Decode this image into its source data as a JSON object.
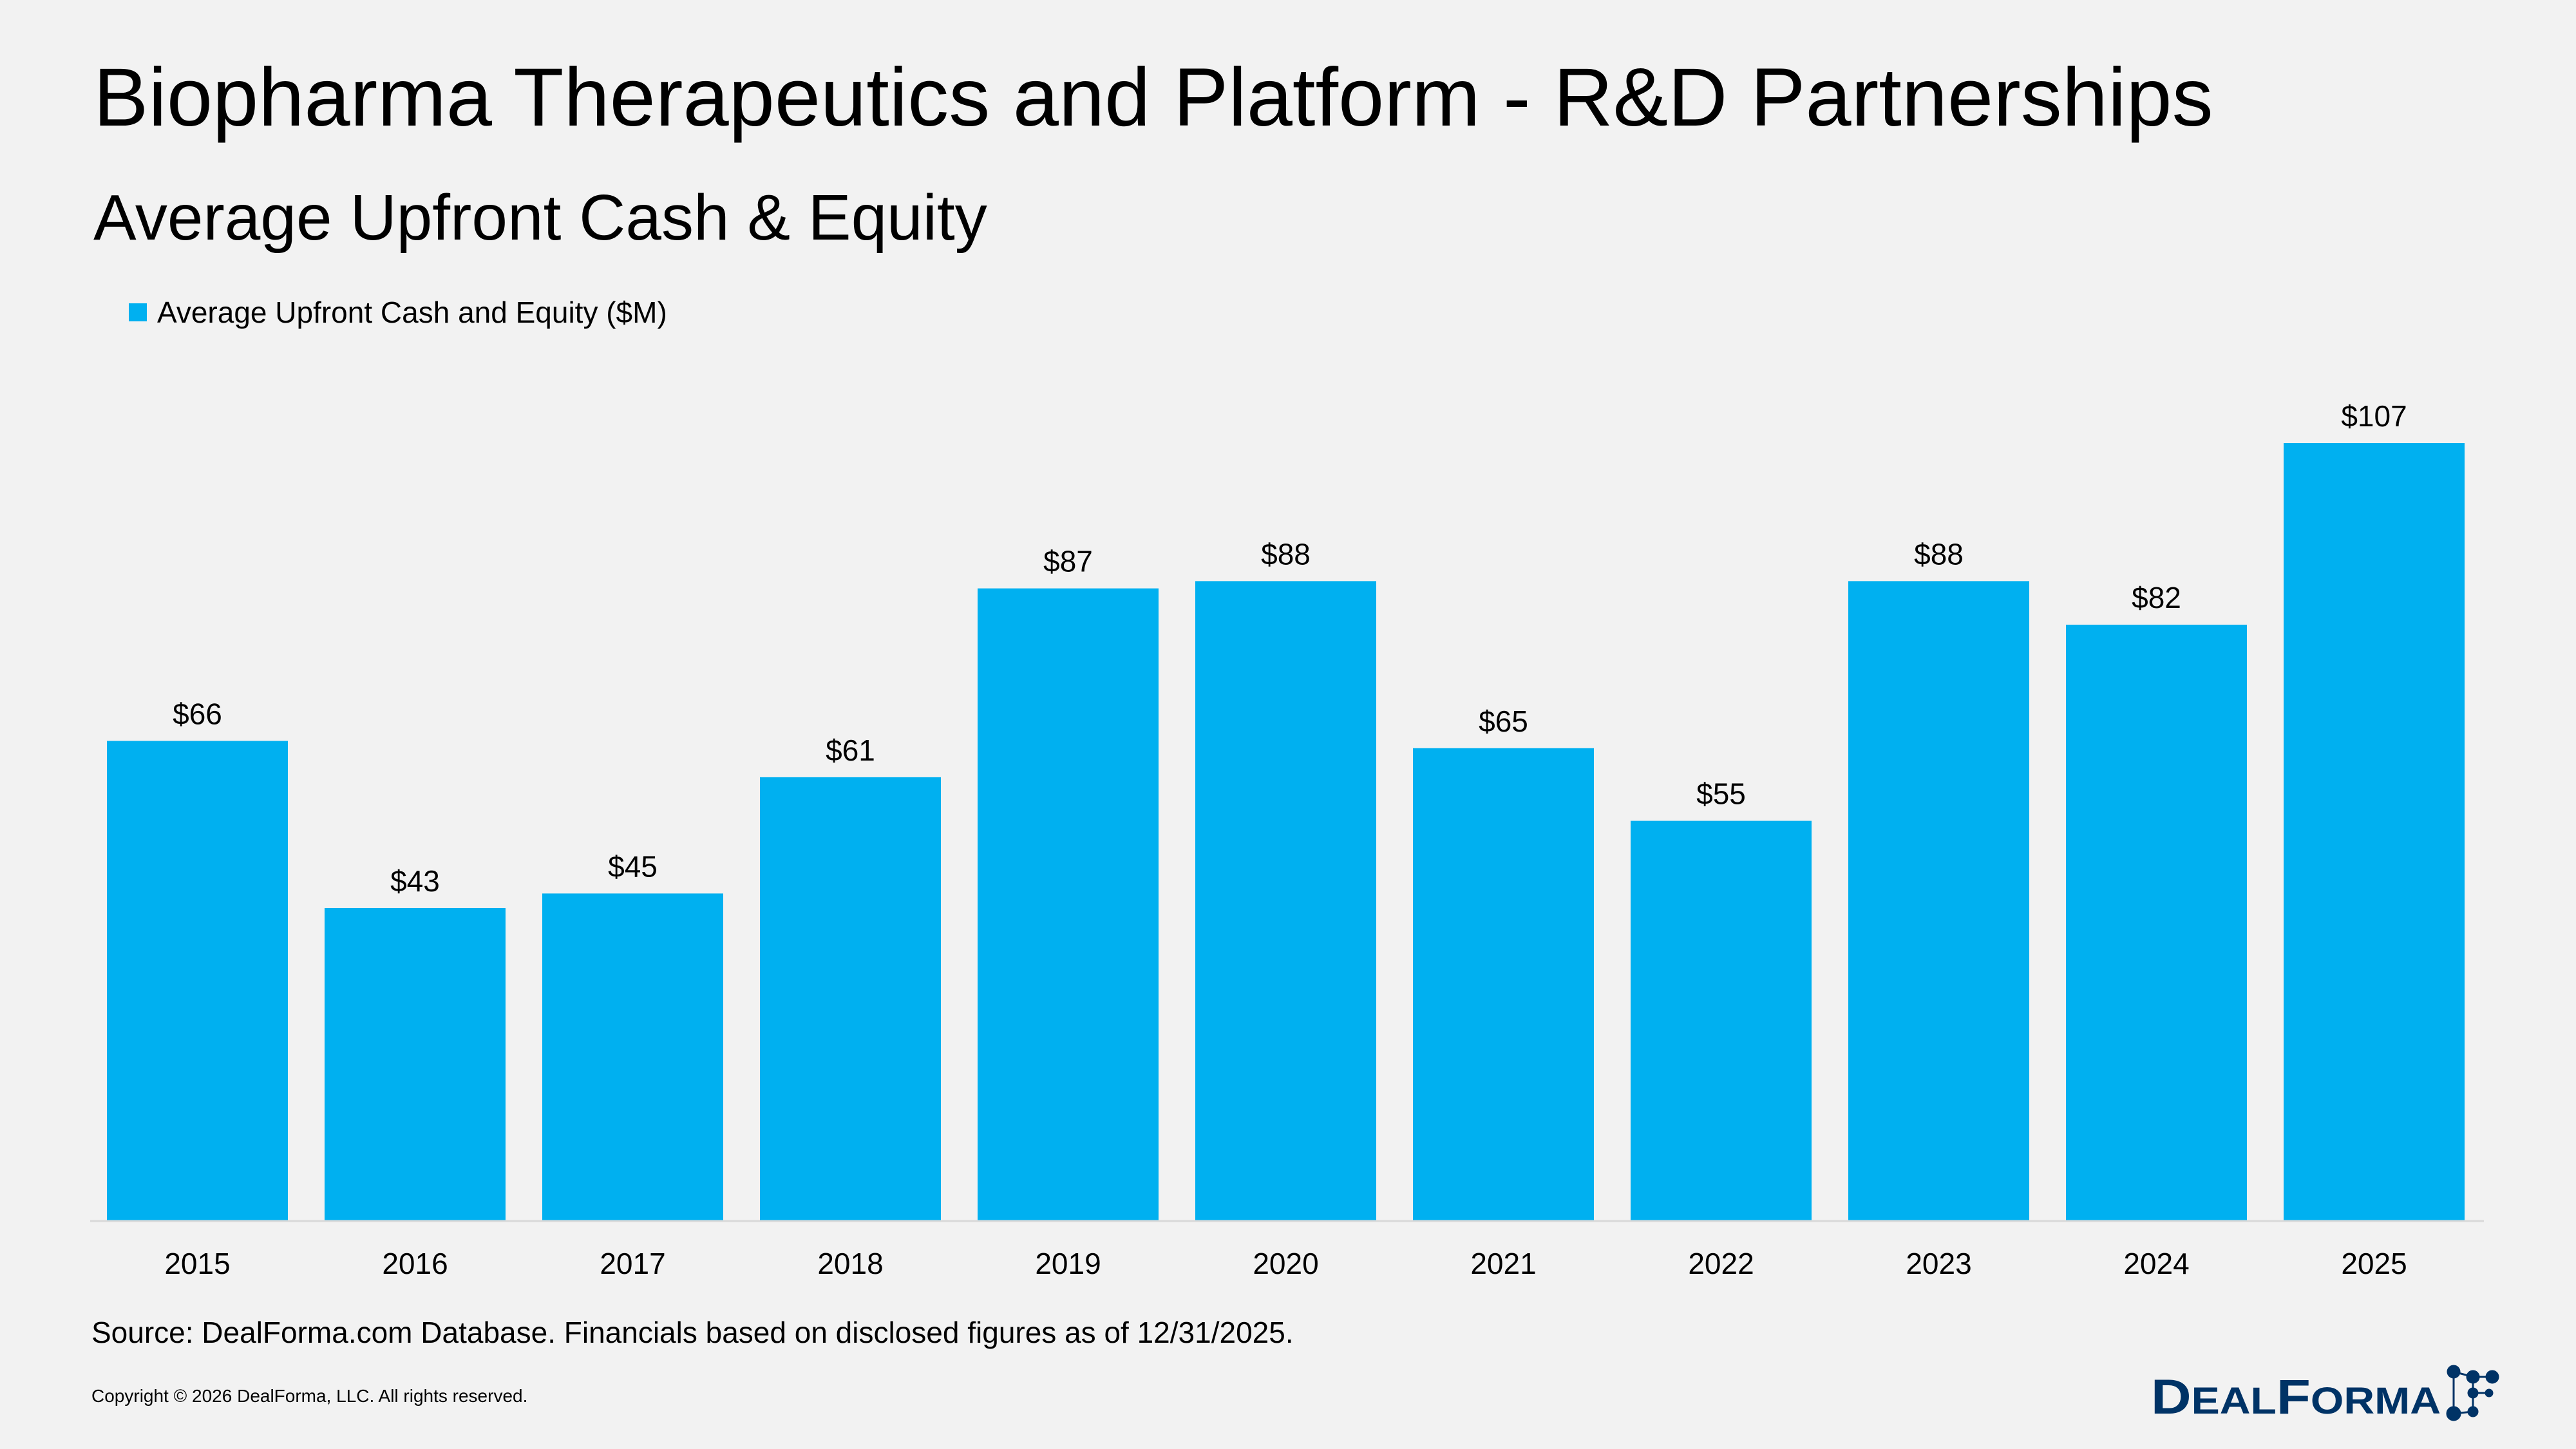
{
  "title": "Biopharma Therapeutics and Platform - R&D Partnerships",
  "subtitle": "Average Upfront Cash & Equity",
  "source": "Source: DealForma.com Database. Financials based on disclosed figures as of 12/31/2025.",
  "copyright": "Copyright © 2026 DealForma, LLC. All rights reserved.",
  "logo_text": "DEALFORMA",
  "colors": {
    "bar": "#00b0f0",
    "logo": "#003366",
    "background": "#f2f2f2"
  },
  "chart_data": {
    "type": "bar",
    "categories": [
      "2015",
      "2016",
      "2017",
      "2018",
      "2019",
      "2020",
      "2021",
      "2022",
      "2023",
      "2024",
      "2025"
    ],
    "series": [
      {
        "name": "Average Upfront Cash and Equity ($M)",
        "values": [
          66,
          43,
          45,
          61,
          87,
          88,
          65,
          55,
          88,
          82,
          107
        ]
      }
    ],
    "data_labels": [
      "$66",
      "$43",
      "$45",
      "$61",
      "$87",
      "$88",
      "$65",
      "$55",
      "$88",
      "$82",
      "$107"
    ],
    "legend_position": "top-left",
    "grid": false,
    "ylim": [
      0,
      110
    ]
  }
}
